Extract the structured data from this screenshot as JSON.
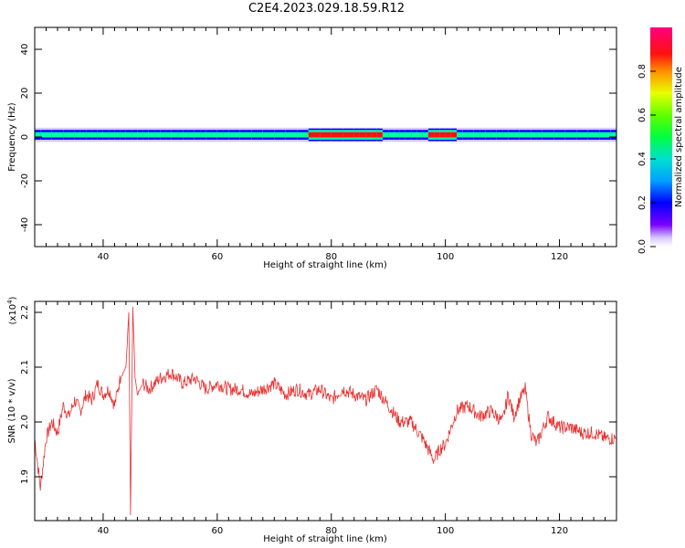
{
  "title": "C2E4.2023.029.18.59.R12",
  "chart_data": [
    {
      "type": "heatmap",
      "xlabel": "Height of straight line (km)",
      "ylabel": "Frequency (Hz)",
      "xlim": [
        28,
        130
      ],
      "ylim": [
        -50,
        50
      ],
      "xticks": [
        40,
        60,
        80,
        100,
        120
      ],
      "yticks": [
        40,
        20,
        0,
        -20,
        -40
      ],
      "colorbar": {
        "label": "Normalized spectral amplitude",
        "range": [
          0,
          1
        ],
        "ticks": [
          "0.0",
          "0.2",
          "0.4",
          "0.6",
          "0.8"
        ]
      },
      "band": {
        "center_hz": 1,
        "half_width_hz": 3,
        "peak_amplitude_regions_km": [
          [
            76,
            88
          ],
          [
            97,
            101
          ]
        ]
      }
    },
    {
      "type": "line",
      "xlabel": "Height of straight line (km)",
      "ylabel": "SNR (10 * v/v)",
      "multiplier": "(x10",
      "multiplier_exp": "4",
      "multiplier_close": ")",
      "xlim": [
        28,
        130
      ],
      "ylim": [
        1.82,
        2.22
      ],
      "xticks": [
        40,
        60,
        80,
        100,
        120
      ],
      "yticks": [
        "1.9",
        "2.0",
        "2.1",
        "2.2"
      ],
      "color": "#e83030",
      "series": [
        {
          "x": [
            28,
            29,
            30,
            31,
            32,
            33,
            34,
            35,
            36,
            37,
            38,
            39,
            40,
            41,
            42,
            43,
            44,
            44.5,
            44.8,
            45.2,
            45.6,
            46,
            47,
            48,
            50,
            52,
            54,
            56,
            58,
            60,
            62,
            64,
            66,
            68,
            70,
            72,
            74,
            76,
            78,
            80,
            82,
            84,
            86,
            88,
            90,
            92,
            94,
            96,
            98,
            99,
            100,
            102,
            104,
            106,
            108,
            110,
            111,
            112,
            113,
            114,
            115,
            116,
            118,
            120,
            122,
            124,
            126,
            128,
            130
          ],
          "y": [
            1.97,
            1.88,
            1.97,
            2.0,
            1.98,
            2.03,
            2.01,
            2.04,
            2.02,
            2.05,
            2.04,
            2.07,
            2.05,
            2.06,
            2.03,
            2.08,
            2.1,
            2.2,
            1.83,
            2.21,
            2.08,
            2.05,
            2.07,
            2.06,
            2.08,
            2.09,
            2.07,
            2.08,
            2.06,
            2.07,
            2.06,
            2.06,
            2.05,
            2.06,
            2.07,
            2.05,
            2.06,
            2.05,
            2.06,
            2.04,
            2.06,
            2.05,
            2.04,
            2.06,
            2.03,
            2.0,
            2.0,
            1.97,
            1.93,
            1.95,
            1.96,
            2.02,
            2.03,
            2.01,
            2.02,
            2.0,
            2.05,
            2.01,
            2.04,
            2.06,
            1.98,
            1.96,
            2.01,
            1.99,
            1.99,
            1.98,
            1.98,
            1.97,
            1.97
          ]
        }
      ]
    }
  ]
}
